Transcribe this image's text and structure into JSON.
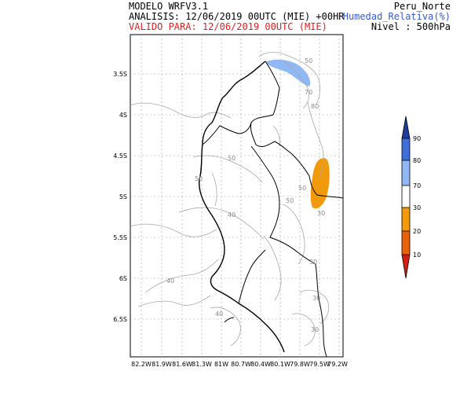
{
  "header": {
    "model": "MODELO WRFV3.1",
    "analysis": "ANALISIS: 12/06/2019 00UTC (MIE) +00HR",
    "valid": "VALIDO PARA: 12/06/2019 00UTC (MIE)",
    "region": "Peru_Norte",
    "variable": "Humedad_Relativa(%)",
    "level": "Nivel : 500hPa"
  },
  "axes": {
    "lat_ticks": [
      "3.5S",
      "4S",
      "4.5S",
      "5S",
      "5.5S",
      "6S",
      "6.5S"
    ],
    "lon_ticks": [
      "82.2W",
      "81.9W",
      "81.6W",
      "81.3W",
      "81W",
      "80.7W",
      "80.4W",
      "80.1W",
      "79.8W",
      "79.5W",
      "79.2W"
    ]
  },
  "contour_labels": [
    "50",
    "70",
    "80",
    "50",
    "50",
    "40",
    "50",
    "50",
    "30",
    "30",
    "40",
    "40",
    "30",
    "30"
  ],
  "legend": {
    "ticks": [
      "90",
      "80",
      "70",
      "30",
      "20",
      "10"
    ],
    "colors": {
      "c90": "#1e3c9c",
      "c80": "#3f6fd9",
      "c70": "#8fb8f5",
      "mid": "#ffffff",
      "c30": "#f29a0c",
      "c20": "#e8620a",
      "c10": "#d42010"
    }
  }
}
